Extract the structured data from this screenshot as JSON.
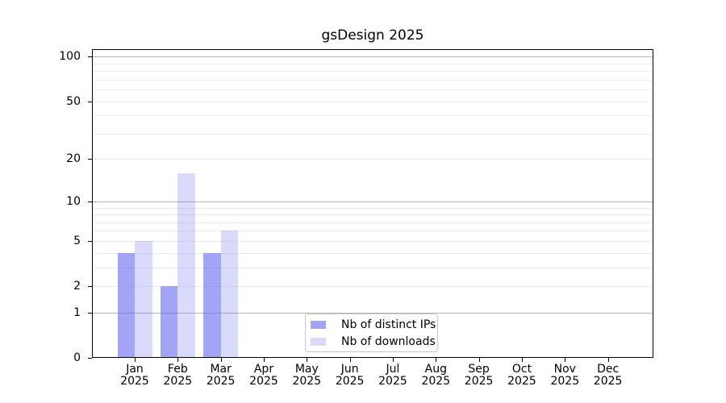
{
  "title": "gsDesign 2025",
  "chart_data": {
    "type": "bar",
    "title": "gsDesign 2025",
    "yscale": "log1p",
    "categories": [
      "Jan 2025",
      "Feb 2025",
      "Mar 2025",
      "Apr 2025",
      "May 2025",
      "Jun 2025",
      "Jul 2025",
      "Aug 2025",
      "Sep 2025",
      "Oct 2025",
      "Nov 2025",
      "Dec 2025"
    ],
    "series": [
      {
        "name": "Nb of distinct IPs",
        "color": "rgba(106,108,240,0.62)",
        "values": [
          4,
          2,
          4,
          0,
          0,
          0,
          0,
          0,
          0,
          0,
          0,
          0
        ]
      },
      {
        "name": "Nb of downloads",
        "color": "rgba(106,108,240,0.25)",
        "values": [
          5,
          16,
          6,
          0,
          0,
          0,
          0,
          0,
          0,
          0,
          0,
          0
        ]
      }
    ],
    "y_ticks": [
      0,
      1,
      2,
      5,
      10,
      20,
      50,
      100
    ],
    "y_major_gridlines": [
      1,
      10,
      100
    ],
    "y_minor_gridlines": [
      2,
      3,
      4,
      5,
      6,
      7,
      8,
      9,
      20,
      30,
      40,
      50,
      60,
      70,
      80,
      90
    ],
    "ylim": [
      0,
      112
    ],
    "xlabel": "",
    "ylabel": "",
    "grid": "horizontal",
    "legend_position": "lower center",
    "colors": {
      "major_grid": "#b3b3b3",
      "minor_grid": "#ebebeb",
      "spine": "#000000",
      "text": "#000000",
      "background": "#ffffff"
    }
  },
  "legend": {
    "items": [
      {
        "label": "Nb of distinct IPs"
      },
      {
        "label": "Nb of downloads"
      }
    ]
  }
}
